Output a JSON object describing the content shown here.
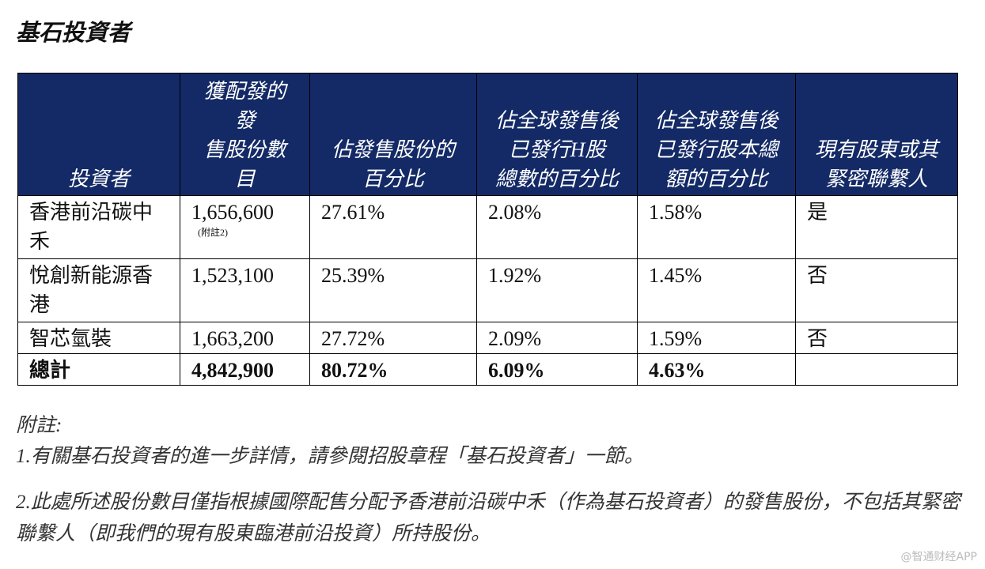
{
  "title": "基石投資者",
  "table": {
    "header": [
      [
        "投資者"
      ],
      [
        "獲配發的",
        "發",
        "售股份數",
        "目"
      ],
      [
        "佔發售股份的",
        "百分比"
      ],
      [
        "佔全球發售後",
        "已發行H股",
        "總數的百分比"
      ],
      [
        "佔全球發售後",
        "已發行股本總",
        "額的百分比"
      ],
      [
        "現有股東或其",
        "緊密聯繫人"
      ]
    ],
    "rows": [
      [
        "香港前沿碳中禾",
        {
          "text": "1,656,600",
          "note": "(附註2)"
        },
        "27.61%",
        "2.08%",
        "1.58%",
        "是"
      ],
      [
        "悅創新能源香港",
        "1,523,100",
        "25.39%",
        "1.92%",
        "1.45%",
        "否"
      ],
      [
        "智芯氫裝",
        "1,663,200",
        "27.72%",
        "2.09%",
        "1.59%",
        "否"
      ]
    ],
    "total": [
      "總計",
      "4,842,900",
      "80.72%",
      "6.09%",
      "4.63%"
    ]
  },
  "notes": {
    "heading": "附註:",
    "items": [
      "1.有關基石投資者的進一步詳情，請參閱招股章程「基石投資者」一節。",
      "2.此處所述股份數目僅指根據國際配售分配予香港前沿碳中禾（作為基石投資者）的發售股份，不包括其緊密聯繫人（即我們的現有股東臨港前沿投資）所持股份。"
    ]
  },
  "watermark": "@智通财经APP"
}
